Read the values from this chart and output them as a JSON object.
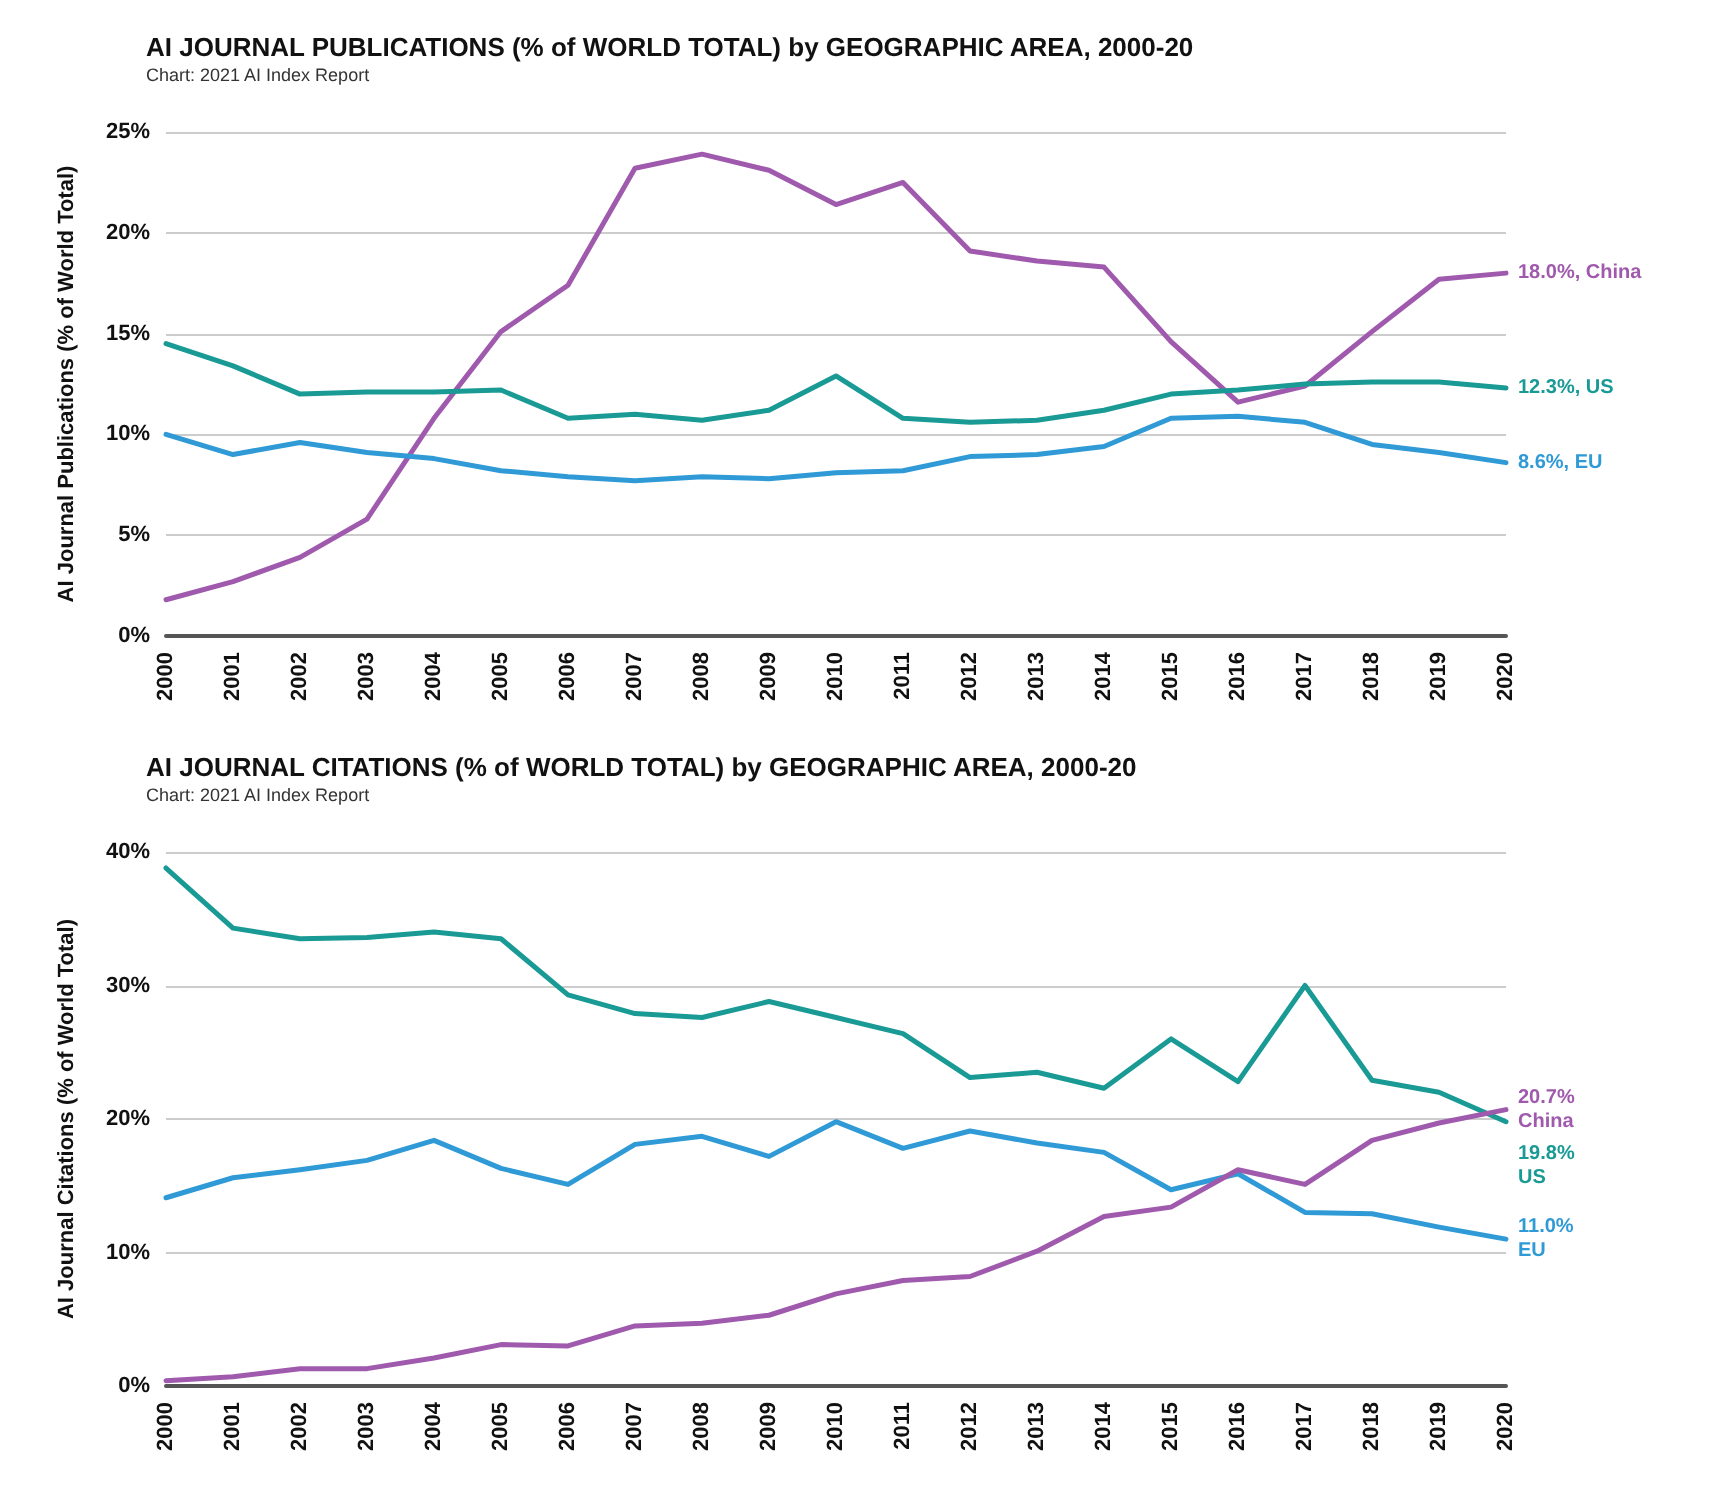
{
  "chart_data": [
    {
      "type": "line",
      "title": "AI JOURNAL PUBLICATIONS (% of WORLD TOTAL) by GEOGRAPHIC AREA, 2000-20",
      "ylabel": "AI Journal Publications (% of World Total)",
      "categories": [
        "2000",
        "2001",
        "2002",
        "2003",
        "2004",
        "2005",
        "2006",
        "2007",
        "2008",
        "2009",
        "2010",
        "2011",
        "2012",
        "2013",
        "2014",
        "2015",
        "2016",
        "2017",
        "2018",
        "2019",
        "2020"
      ],
      "series": [
        {
          "color": "#a05aad",
          "values": [
            1.8,
            2.7,
            3.9,
            5.8,
            10.8,
            15.1,
            17.4,
            23.2,
            23.9,
            23.1,
            21.4,
            22.5,
            19.1,
            18.6,
            18.3,
            14.6,
            11.6,
            12.4,
            15.1,
            17.7,
            18.0
          ]
        },
        {
          "color": "#1a9a95",
          "values": [
            14.5,
            13.4,
            12.0,
            12.1,
            12.1,
            12.2,
            10.8,
            11.0,
            10.7,
            11.2,
            12.9,
            10.8,
            10.6,
            10.7,
            11.2,
            12.0,
            12.2,
            12.5,
            12.6,
            12.6,
            12.3
          ]
        },
        {
          "color": "#2f9ad6",
          "values": [
            10.0,
            9.0,
            9.6,
            9.1,
            8.8,
            8.2,
            7.9,
            7.7,
            7.9,
            7.8,
            8.1,
            8.2,
            8.9,
            9.0,
            9.4,
            10.8,
            10.9,
            10.6,
            9.5,
            9.1,
            8.6
          ]
        }
      ],
      "ylim": [
        0,
        25
      ],
      "yticks": [
        {
          "value": 0,
          "label": "0%"
        },
        {
          "value": 5,
          "label": "5%"
        },
        {
          "value": 10,
          "label": "10%"
        },
        {
          "value": 15,
          "label": "15%"
        },
        {
          "value": 20,
          "label": "20%"
        },
        {
          "value": 25,
          "label": "25%"
        }
      ],
      "grid": "y",
      "marker": "none",
      "line_style": "solid",
      "annotations": [
        "Chart: 2021 AI Index Report",
        {
          "text": "18.0%, China",
          "x": "2020",
          "y": 18.0
        },
        {
          "text": "12.3%, US",
          "x": "2020",
          "y": 12.3
        },
        {
          "text": "8.6%, EU",
          "x": "2020",
          "y": 8.6
        }
      ]
    },
    {
      "type": "line",
      "title": "AI JOURNAL CITATIONS (% of WORLD TOTAL) by GEOGRAPHIC AREA, 2000-20",
      "ylabel": "AI Journal Citations (% of World Total)",
      "categories": [
        "2000",
        "2001",
        "2002",
        "2003",
        "2004",
        "2005",
        "2006",
        "2007",
        "2008",
        "2009",
        "2010",
        "2011",
        "2012",
        "2013",
        "2014",
        "2015",
        "2016",
        "2017",
        "2018",
        "2019",
        "2020"
      ],
      "series": [
        {
          "color": "#1a9a95",
          "values": [
            38.8,
            34.3,
            33.5,
            33.6,
            34.0,
            33.5,
            29.3,
            27.9,
            27.6,
            28.8,
            27.6,
            26.4,
            23.1,
            23.5,
            22.3,
            26.0,
            22.8,
            30.0,
            22.9,
            22.0,
            19.8
          ]
        },
        {
          "color": "#2f9ad6",
          "values": [
            14.1,
            15.6,
            16.2,
            16.9,
            18.4,
            16.3,
            15.1,
            18.1,
            18.7,
            17.2,
            19.8,
            17.8,
            19.1,
            18.2,
            17.5,
            14.7,
            15.9,
            13.0,
            12.9,
            11.9,
            11.0
          ]
        },
        {
          "color": "#a05aad",
          "values": [
            0.4,
            0.7,
            1.3,
            1.3,
            2.1,
            3.1,
            3.0,
            4.5,
            4.7,
            5.3,
            6.9,
            7.9,
            8.2,
            10.1,
            12.7,
            13.4,
            16.2,
            15.1,
            18.4,
            19.7,
            20.7
          ]
        }
      ],
      "ylim": [
        0,
        40
      ],
      "yticks": [
        {
          "value": 0,
          "label": "0%"
        },
        {
          "value": 10,
          "label": "10%"
        },
        {
          "value": 20,
          "label": "20%"
        },
        {
          "value": 30,
          "label": "30%"
        },
        {
          "value": 40,
          "label": "40%"
        }
      ],
      "grid": "y",
      "marker": "none",
      "line_style": "solid",
      "annotations": [
        "Chart: 2021 AI Index Report",
        {
          "text": "20.7%\nChina",
          "x": "2020",
          "y": 20.7
        },
        {
          "text": "19.8%\nUS",
          "x": "2020",
          "y": 19.8
        },
        {
          "text": "11.0%\nEU",
          "x": "2020",
          "y": 11.0
        }
      ]
    }
  ]
}
